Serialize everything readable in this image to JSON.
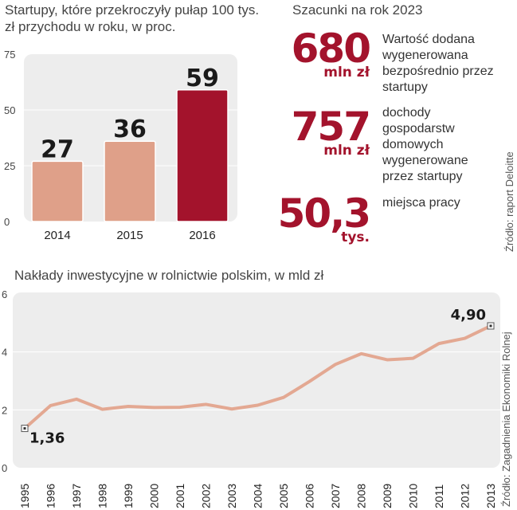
{
  "bar_chart_title": "Startupy, które przekroczyły pułap 100 tys. zł przychodu w roku, w proc.",
  "stats_title": "Szacunki na rok 2023",
  "stats": [
    {
      "value": "680",
      "unit": "mln zł",
      "desc": "Wartość dodana wygenerowana bezpośrednio przez startupy"
    },
    {
      "value": "757",
      "unit": "mln zł",
      "desc": "dochody gospodarstw domowych wygenerowane przez startupy"
    },
    {
      "value": "50,3",
      "unit": "tys.",
      "desc": "miejsca pracy"
    }
  ],
  "source_top": "Źródło: raport Deloitte",
  "line_chart_title": "Nakłady inwestycyjne w rolnictwie polskim, w mld zł",
  "source_bottom": "Źródło: Zagadnienia Ekonomiki Rolnej",
  "colors": {
    "bar_light": "#dfa089",
    "bar_dark": "#a3132c",
    "panel": "#ededed",
    "line": "#e3a892",
    "accent": "#a3132c"
  },
  "chart_data": [
    {
      "type": "bar",
      "title": "Startupy, które przekroczyły pułap 100 tys. zł przychodu w roku, w proc.",
      "categories": [
        "2014",
        "2015",
        "2016"
      ],
      "values": [
        27,
        36,
        59
      ],
      "value_labels": [
        "27",
        "36",
        "59"
      ],
      "ylim": [
        0,
        75
      ],
      "yticks": [
        "0",
        "25",
        "50",
        "75"
      ],
      "highlight": "2016"
    },
    {
      "type": "line",
      "title": "Nakłady inwestycyjne w rolnictwie polskim, w mld zł",
      "x": [
        "1995",
        "1996",
        "1997",
        "1998",
        "1999",
        "2000",
        "2001",
        "2002",
        "2003",
        "2004",
        "2005",
        "2006",
        "2007",
        "2008",
        "2009",
        "2010",
        "2011",
        "2012",
        "2013"
      ],
      "values": [
        1.36,
        2.15,
        2.37,
        2.02,
        2.12,
        2.08,
        2.09,
        2.19,
        2.03,
        2.16,
        2.43,
        2.98,
        3.57,
        3.94,
        3.73,
        3.78,
        4.29,
        4.47,
        4.9
      ],
      "labelled_points": [
        {
          "x": "1995",
          "label": "1,36"
        },
        {
          "x": "2013",
          "label": "4,90"
        }
      ],
      "ylim": [
        0,
        6
      ],
      "yticks": [
        "0",
        "2",
        "4",
        "6"
      ]
    }
  ]
}
